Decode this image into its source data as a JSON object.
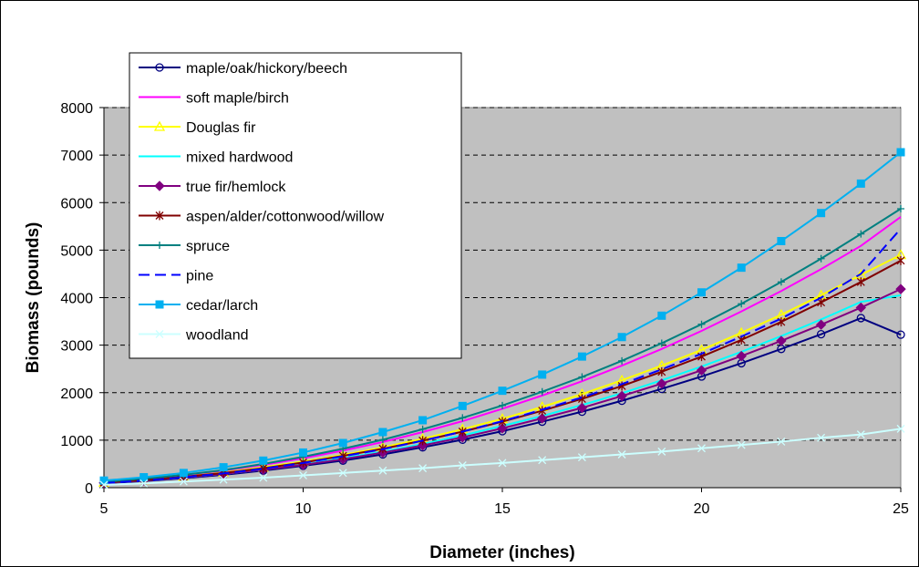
{
  "chart_data": {
    "type": "line",
    "title": "",
    "xlabel": "Diameter (inches)",
    "ylabel": "Biomass (pounds)",
    "xlim": [
      5,
      25
    ],
    "ylim": [
      0,
      8000
    ],
    "x_ticks": [
      "5",
      "10",
      "15",
      "20",
      "25"
    ],
    "y_ticks": [
      "0",
      "1000",
      "2000",
      "3000",
      "4000",
      "5000",
      "6000",
      "7000",
      "8000"
    ],
    "grid": "horizontal dashed",
    "plot_background": "#c0c0c0",
    "legend_position": "top-left",
    "x": [
      5,
      6,
      7,
      8,
      9,
      10,
      11,
      12,
      13,
      14,
      15,
      16,
      17,
      18,
      19,
      20,
      21,
      22,
      23,
      24,
      25
    ],
    "series": [
      {
        "name": "maple/oak/hickory/beech",
        "color": "#000080",
        "marker": "circle-open",
        "dash": "solid",
        "values": [
          90,
          140,
          200,
          270,
          360,
          460,
          570,
          700,
          850,
          1010,
          1190,
          1390,
          1600,
          1830,
          2080,
          2340,
          2620,
          2920,
          3230,
          3570,
          3220
        ]
      },
      {
        "name": "soft maple/birch",
        "color": "#ff00ff",
        "marker": "none",
        "dash": "solid",
        "values": [
          120,
          180,
          260,
          360,
          480,
          620,
          780,
          960,
          1170,
          1400,
          1660,
          1940,
          2240,
          2570,
          2920,
          3300,
          3710,
          4140,
          4600,
          5090,
          5700
        ]
      },
      {
        "name": "Douglas fir",
        "color": "#ffff00",
        "marker": "triangle-open",
        "dash": "solid",
        "values": [
          110,
          160,
          230,
          320,
          430,
          550,
          690,
          850,
          1030,
          1230,
          1450,
          1700,
          1970,
          2260,
          2570,
          2900,
          3260,
          3640,
          4050,
          4480,
          4900
        ]
      },
      {
        "name": "mixed hardwood",
        "color": "#00ffff",
        "marker": "none",
        "dash": "solid",
        "values": [
          100,
          150,
          210,
          290,
          380,
          490,
          620,
          760,
          920,
          1100,
          1300,
          1510,
          1740,
          1990,
          2260,
          2550,
          2860,
          3190,
          3540,
          3910,
          4050
        ]
      },
      {
        "name": "true fir/hemlock",
        "color": "#800080",
        "marker": "diamond",
        "dash": "solid",
        "values": [
          100,
          150,
          210,
          290,
          380,
          480,
          600,
          740,
          890,
          1060,
          1250,
          1460,
          1680,
          1930,
          2190,
          2470,
          2770,
          3090,
          3430,
          3790,
          4180
        ]
      },
      {
        "name": "aspen/alder/cottonwood/willow",
        "color": "#800000",
        "marker": "star",
        "dash": "solid",
        "values": [
          110,
          160,
          230,
          310,
          410,
          530,
          670,
          820,
          990,
          1180,
          1390,
          1620,
          1870,
          2140,
          2440,
          2760,
          3110,
          3490,
          3900,
          4330,
          4780
        ]
      },
      {
        "name": "spruce",
        "color": "#008080",
        "marker": "plus",
        "dash": "solid",
        "values": [
          120,
          190,
          270,
          370,
          500,
          650,
          820,
          1010,
          1230,
          1470,
          1730,
          2020,
          2330,
          2670,
          3040,
          3440,
          3870,
          4330,
          4820,
          5340,
          5870
        ]
      },
      {
        "name": "pine",
        "color": "#0000ff",
        "marker": "none",
        "dash": "dashed",
        "values": [
          100,
          150,
          220,
          300,
          400,
          520,
          660,
          810,
          990,
          1180,
          1400,
          1640,
          1900,
          2180,
          2490,
          2820,
          3180,
          3560,
          4000,
          4500,
          5450
        ]
      },
      {
        "name": "cedar/larch",
        "color": "#00b0f0",
        "marker": "square",
        "dash": "solid",
        "values": [
          150,
          220,
          310,
          430,
          570,
          740,
          940,
          1170,
          1420,
          1720,
          2040,
          2380,
          2760,
          3170,
          3620,
          4110,
          4630,
          5190,
          5780,
          6400,
          7060
        ]
      },
      {
        "name": "woodland",
        "color": "#ccffff",
        "marker": "x",
        "dash": "solid",
        "values": [
          60,
          90,
          130,
          170,
          210,
          260,
          310,
          360,
          410,
          470,
          520,
          580,
          640,
          700,
          760,
          830,
          900,
          970,
          1050,
          1120,
          1240
        ]
      }
    ]
  }
}
